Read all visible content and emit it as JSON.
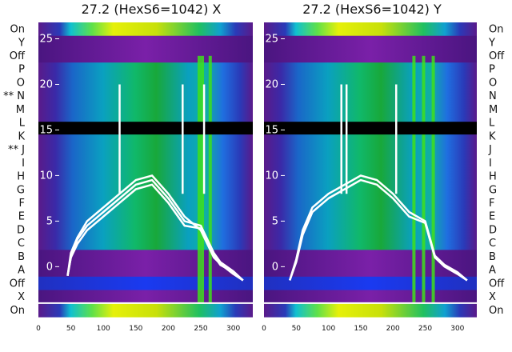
{
  "chart_data": [
    {
      "type": "heatmap",
      "title": "27.2 (HexS6=1042) X",
      "row_labels_top_to_bottom": [
        "On",
        "Y",
        "Off",
        "P",
        "O",
        "** N",
        "M",
        "L",
        "K",
        "** J",
        "I",
        "H",
        "G",
        "F",
        "E",
        "D",
        "C",
        "B",
        "A",
        "Off",
        "X",
        "On"
      ],
      "xlim": [
        0,
        330
      ],
      "x_ticks": [
        0,
        50,
        100,
        150,
        200,
        250,
        300
      ],
      "ylim": [
        -5.5,
        26.8
      ],
      "y_ticks": [
        0,
        5,
        10,
        15,
        20,
        25
      ],
      "white_line_y": -4.0,
      "black_band_y": [
        14.5,
        15.9
      ],
      "green_peak_x": [
        245,
        250,
        262
      ],
      "trace_spikes_x": [
        125,
        222,
        255
      ],
      "series": [
        {
          "x": [
            45,
            50,
            60,
            75,
            100,
            125,
            150,
            175,
            200,
            225,
            250,
            270,
            280,
            300,
            315
          ],
          "y": [
            -1.0,
            1.0,
            3.0,
            4.5,
            6.0,
            7.5,
            9.0,
            9.5,
            7.5,
            5.0,
            4.5,
            1.5,
            0.5,
            -0.5,
            -1.5
          ]
        },
        {
          "x": [
            45,
            50,
            60,
            75,
            100,
            125,
            150,
            175,
            200,
            225,
            250,
            270,
            280,
            300,
            315
          ],
          "y": [
            -1.0,
            1.5,
            3.2,
            5.0,
            6.5,
            8.0,
            9.5,
            10.0,
            8.0,
            5.5,
            4.0,
            1.0,
            0.3,
            -0.8,
            -1.5
          ]
        },
        {
          "x": [
            45,
            50,
            60,
            75,
            100,
            125,
            150,
            175,
            200,
            225,
            250,
            270,
            280,
            300,
            315
          ],
          "y": [
            -1.0,
            1.0,
            2.5,
            4.0,
            5.5,
            7.0,
            8.5,
            9.0,
            7.0,
            4.5,
            4.2,
            1.2,
            0.2,
            -0.6,
            -1.5
          ]
        }
      ]
    },
    {
      "type": "heatmap",
      "title": "27.2 (HexS6=1042) Y",
      "row_labels_top_to_bottom": [
        "On",
        "Y",
        "Off",
        "P",
        "O",
        "N",
        "M",
        "L",
        "K",
        "J",
        "I",
        "H",
        "G",
        "F",
        "E",
        "D",
        "C",
        "B",
        "A",
        "Off",
        "X",
        "On"
      ],
      "xlim": [
        0,
        330
      ],
      "x_ticks": [
        0,
        50,
        100,
        150,
        200,
        250,
        300
      ],
      "ylim": [
        -5.5,
        26.8
      ],
      "y_ticks": [
        0,
        5,
        10,
        15,
        20,
        25
      ],
      "white_line_y": -4.0,
      "black_band_y": [
        14.5,
        15.9
      ],
      "green_peak_x": [
        230,
        245,
        260
      ],
      "trace_spikes_x": [
        120,
        128,
        205
      ],
      "series": [
        {
          "x": [
            40,
            50,
            60,
            75,
            100,
            125,
            150,
            175,
            200,
            225,
            250,
            265,
            280,
            300,
            315
          ],
          "y": [
            -1.5,
            0.5,
            3.5,
            6.0,
            7.5,
            8.5,
            9.5,
            9.0,
            7.5,
            5.5,
            4.8,
            1.0,
            0.0,
            -0.8,
            -1.5
          ]
        },
        {
          "x": [
            40,
            50,
            60,
            75,
            100,
            125,
            150,
            175,
            200,
            225,
            250,
            265,
            280,
            300,
            315
          ],
          "y": [
            -1.5,
            0.8,
            4.0,
            6.5,
            8.0,
            9.0,
            10.0,
            9.5,
            8.0,
            6.0,
            5.0,
            1.2,
            0.2,
            -0.6,
            -1.5
          ]
        }
      ]
    }
  ]
}
